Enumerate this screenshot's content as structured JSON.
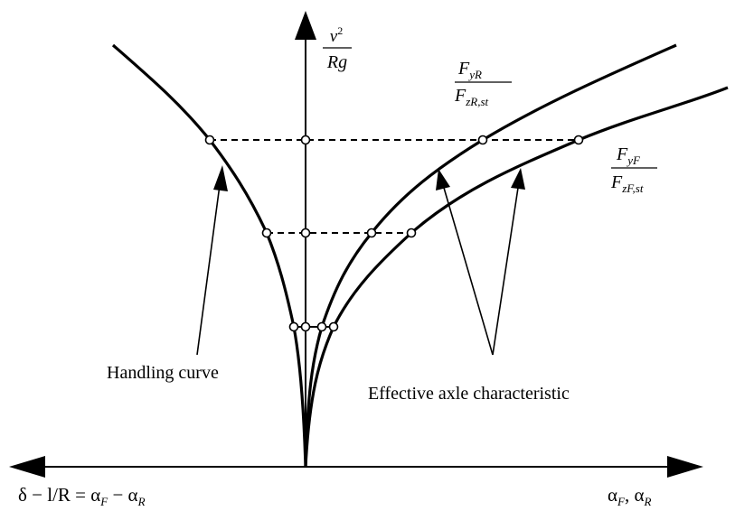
{
  "y_axis_label": {
    "numerator": "v",
    "numerator_sup": "2",
    "denominator": "Rg"
  },
  "rear_label": {
    "numerator": {
      "base": "F",
      "sub": "yR"
    },
    "denominator": {
      "base": "F",
      "sub": "zR,st"
    }
  },
  "front_label": {
    "numerator": {
      "base": "F",
      "sub": "yF"
    },
    "denominator": {
      "base": "F",
      "sub": "zF,st"
    }
  },
  "x_axis_left_label": [
    {
      "text": "δ − l/R = α"
    },
    {
      "sub": "F"
    },
    {
      "text": " − α"
    },
    {
      "sub": "R"
    }
  ],
  "x_axis_right_label": [
    {
      "text": "α"
    },
    {
      "sub": "F"
    },
    {
      "text": ", α"
    },
    {
      "sub": "R"
    }
  ],
  "handling_label": "Handling curve",
  "axle_label": "Effective axle characteristic"
}
